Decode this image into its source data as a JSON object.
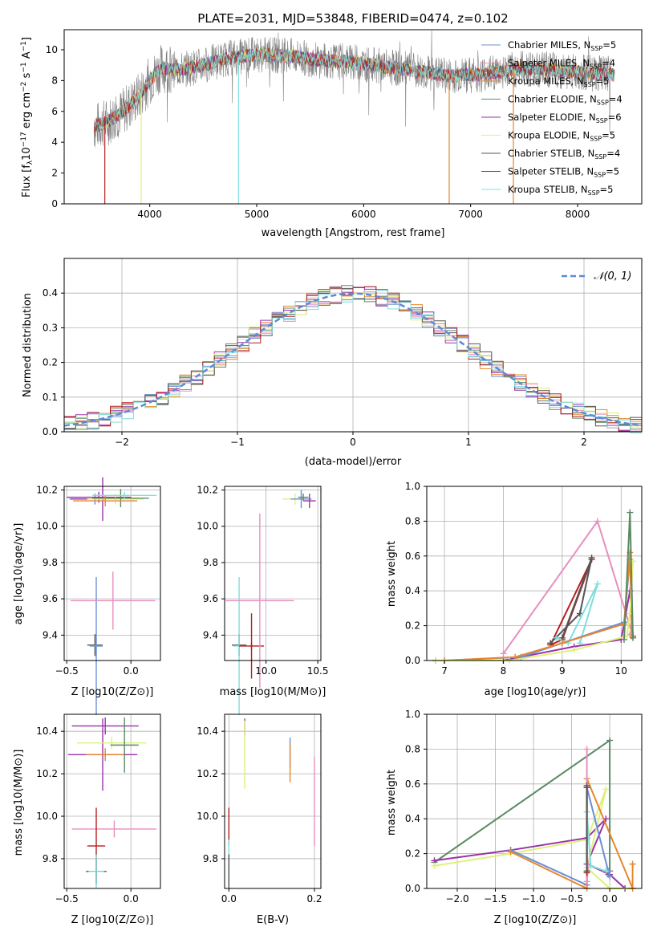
{
  "chart_data": [
    {
      "id": "spectrum",
      "type": "line",
      "title": "PLATE=2031, MJD=53848, FIBERID=0474, z=0.102",
      "xlabel": "wavelength [Angstrom, rest frame]",
      "ylabel": "Flux [f_λ 10^-17 erg cm^-2 s^-1 A^-1]",
      "xlim": [
        3200,
        8600
      ],
      "ylim": [
        0,
        11.3
      ],
      "xticks": [
        "4000",
        "5000",
        "6000",
        "7000",
        "8000"
      ],
      "yticks": [
        "0",
        "2",
        "4",
        "6",
        "8",
        "10"
      ],
      "grid": false,
      "legend_position": "right",
      "series": [
        {
          "name": "Chabrier MILES, N_SSP=5",
          "color": "#6b8fd6"
        },
        {
          "name": "Salpeter MILES, N_SSP=4",
          "color": "#e88fbf"
        },
        {
          "name": "Kroupa MILES, N_SSP=5",
          "color": "#e6862f"
        },
        {
          "name": "Chabrier ELODIE, N_SSP=4",
          "color": "#5b8a64"
        },
        {
          "name": "Salpeter ELODIE, N_SSP=6",
          "color": "#9933aa"
        },
        {
          "name": "Kroupa ELODIE, N_SSP=5",
          "color": "#dff07a"
        },
        {
          "name": "Chabrier STELIB, N_SSP=4",
          "color": "#555555"
        },
        {
          "name": "Salpeter STELIB, N_SSP=5",
          "color": "#b51f1f"
        },
        {
          "name": "Kroupa STELIB, N_SSP=5",
          "color": "#7fdede"
        }
      ],
      "observed_color": "#808080",
      "continuum": {
        "x": [
          3480,
          3600,
          3750,
          3900,
          4000,
          4100,
          4300,
          4500,
          4700,
          5000,
          5300,
          5600,
          5900,
          6200,
          6500,
          6800,
          7100,
          7300,
          7500
        ],
        "y": [
          5.0,
          5.3,
          6.0,
          7.0,
          8.0,
          8.8,
          8.7,
          9.0,
          9.4,
          9.7,
          9.6,
          9.3,
          9.2,
          8.9,
          8.6,
          8.3,
          8.4,
          8.6,
          8.8
        ]
      },
      "model_end_x": 8350
    },
    {
      "id": "residuals",
      "type": "bar",
      "xlabel": "(data-model)/error",
      "ylabel": "Normed distribution",
      "xlim": [
        -2.5,
        2.5
      ],
      "ylim": [
        0,
        0.5
      ],
      "xticks": [
        "−2",
        "−1",
        "0",
        "1",
        "2"
      ],
      "yticks": [
        "0.0",
        "0.1",
        "0.2",
        "0.3",
        "0.4"
      ],
      "grid": true,
      "legend": "𝒩(0, 1)",
      "legend_position": "top-right",
      "gauss_color": "#5b8bd9",
      "bin_width": 0.1
    },
    {
      "id": "age-vs-Z",
      "type": "scatter",
      "xlabel": "Z [log10(Z/Z⊙)]",
      "ylabel": "age [log10(age/yr)]",
      "xlim": [
        -0.52,
        0.23
      ],
      "ylim": [
        9.26,
        10.22
      ],
      "xticks": [
        "−0.5",
        "0.0"
      ],
      "yticks": [
        "9.4",
        "9.6",
        "9.8",
        "10.0",
        "10.2"
      ],
      "grid": true
    },
    {
      "id": "age-vs-mass",
      "type": "scatter",
      "xlabel": "mass [log10(M/M⊙)]",
      "xlim": [
        9.6,
        10.53
      ],
      "ylim": [
        9.26,
        10.22
      ],
      "xticks": [
        "10.0",
        "10.5"
      ],
      "yticks": [
        "9.4",
        "9.6",
        "9.8",
        "10.0",
        "10.2"
      ],
      "grid": true
    },
    {
      "id": "massweight-vs-age",
      "type": "line",
      "xlabel": "age [log10(age/yr)]",
      "ylabel": "mass weight",
      "xlim": [
        6.7,
        10.35
      ],
      "ylim": [
        0,
        1.0
      ],
      "xticks": [
        "7",
        "8",
        "9",
        "10"
      ],
      "yticks": [
        "0.0",
        "0.2",
        "0.4",
        "0.6",
        "0.8",
        "1.0"
      ],
      "grid": true
    },
    {
      "id": "mass-vs-Z",
      "type": "scatter",
      "xlabel": "Z [log10(Z/Z⊙)]",
      "ylabel": "mass [log10(M/M⊙)]",
      "xlim": [
        -0.52,
        0.23
      ],
      "ylim": [
        9.66,
        10.48
      ],
      "xticks": [
        "−0.5",
        "0.0"
      ],
      "yticks": [
        "9.8",
        "10.0",
        "10.2",
        "10.4"
      ],
      "grid": true
    },
    {
      "id": "mass-vs-ebv",
      "type": "scatter",
      "xlabel": "E(B-V)",
      "xlim": [
        -0.01,
        0.215
      ],
      "ylim": [
        9.66,
        10.48
      ],
      "xticks": [
        "0.0",
        "0.2"
      ],
      "yticks": [
        "9.8",
        "10.0",
        "10.2",
        "10.4"
      ],
      "grid": true
    },
    {
      "id": "massweight-vs-Z",
      "type": "line",
      "xlabel": "Z [log10(Z/Z⊙)]",
      "ylabel": "mass weight",
      "xlim": [
        -2.4,
        0.42
      ],
      "ylim": [
        0,
        1.0
      ],
      "xticks": [
        "−2.0",
        "−1.5",
        "−1.0",
        "−0.5",
        "0.0"
      ],
      "yticks": [
        "0.0",
        "0.2",
        "0.4",
        "0.6",
        "0.8",
        "1.0"
      ],
      "grid": true
    }
  ],
  "points": {
    "ageZ": [
      {
        "x": -0.28,
        "y": 9.345,
        "xe": 0.06,
        "ye": 0.06,
        "c": "#555555"
      },
      {
        "x": -0.27,
        "y": 9.34,
        "xe": 0.05,
        "ye": 0.05,
        "c": "#7fdede"
      },
      {
        "x": -0.27,
        "y": 9.34,
        "xe": 0.05,
        "ye": 0.38,
        "c": "#6b8fd6"
      },
      {
        "x": -0.14,
        "y": 9.59,
        "xe": 0.33,
        "ye": 0.16,
        "c": "#e88fbf"
      },
      {
        "x": -0.28,
        "y": 10.15,
        "xe": 0.2,
        "ye": 0.03,
        "c": "#6b8fd6"
      },
      {
        "x": -0.25,
        "y": 10.16,
        "xe": 0.25,
        "ye": 0.03,
        "c": "#9933aa"
      },
      {
        "x": -0.22,
        "y": 10.15,
        "xe": 0.25,
        "ye": 0.12,
        "c": "#9933aa"
      },
      {
        "x": -0.12,
        "y": 10.15,
        "xe": 0.22,
        "ye": 0.03,
        "c": "#dff07a"
      },
      {
        "x": -0.08,
        "y": 10.155,
        "xe": 0.22,
        "ye": 0.05,
        "c": "#5b8a64"
      },
      {
        "x": -0.2,
        "y": 10.14,
        "xe": 0.25,
        "ye": 0.03,
        "c": "#e6862f"
      },
      {
        "x": -0.05,
        "y": 10.17,
        "xe": 0.25,
        "ye": 0.02,
        "c": "#7fdede"
      }
    ],
    "ageM": [
      {
        "x": 9.74,
        "y": 9.345,
        "xe": 0.07,
        "ye": 0.06,
        "c": "#555555"
      },
      {
        "x": 9.74,
        "y": 9.34,
        "xe": 0.06,
        "ye": 0.38,
        "c": "#7fdede"
      },
      {
        "x": 9.86,
        "y": 9.34,
        "xe": 0.12,
        "ye": 0.02,
        "c": "#b51f1f"
      },
      {
        "x": 9.86,
        "y": 9.34,
        "xe": 0.01,
        "ye": 0.18,
        "c": "#b51f1f"
      },
      {
        "x": 9.94,
        "y": 9.59,
        "xe": 0.33,
        "ye": 0.48,
        "c": "#e88fbf"
      },
      {
        "x": 10.28,
        "y": 10.15,
        "xe": 0.12,
        "ye": 0.03,
        "c": "#dff07a"
      },
      {
        "x": 10.34,
        "y": 10.15,
        "xe": 0.1,
        "ye": 0.05,
        "c": "#6b8fd6"
      },
      {
        "x": 10.42,
        "y": 10.14,
        "xe": 0.06,
        "ye": 0.04,
        "c": "#9933aa"
      },
      {
        "x": 10.36,
        "y": 10.16,
        "xe": 0.05,
        "ye": 0.02,
        "c": "#5b8a64"
      }
    ],
    "massZ": [
      {
        "x": -0.2,
        "y": 10.425,
        "xe": 0.26,
        "ye": 0.04,
        "c": "#9933aa"
      },
      {
        "x": -0.22,
        "y": 10.29,
        "xe": 0.27,
        "ye": 0.17,
        "c": "#9933aa"
      },
      {
        "x": -0.15,
        "y": 10.345,
        "xe": 0.27,
        "ye": 0.03,
        "c": "#dff07a"
      },
      {
        "x": -0.2,
        "y": 10.29,
        "xe": 0.15,
        "ye": 0.03,
        "c": "#e6862f"
      },
      {
        "x": -0.05,
        "y": 10.335,
        "xe": 0.11,
        "ye": 0.13,
        "c": "#5b8a64"
      },
      {
        "x": -0.13,
        "y": 9.94,
        "xe": 0.33,
        "ye": 0.04,
        "c": "#e88fbf"
      },
      {
        "x": -0.27,
        "y": 9.86,
        "xe": 0.07,
        "ye": 0.18,
        "c": "#b51f1f"
      },
      {
        "x": -0.27,
        "y": 9.74,
        "xe": 0.08,
        "ye": 0.06,
        "c": "#555555"
      },
      {
        "x": -0.27,
        "y": 9.74,
        "xe": 0.06,
        "ye": 0.08,
        "c": "#7fdede"
      }
    ],
    "massE": [
      {
        "x": 0.037,
        "y": 10.42,
        "ye": 0.04,
        "c": "#9933aa"
      },
      {
        "x": 0.037,
        "y": 10.29,
        "ye": 0.16,
        "c": "#dff07a"
      },
      {
        "x": 0.143,
        "y": 10.3,
        "ye": 0.07,
        "c": "#6b8fd6"
      },
      {
        "x": 0.143,
        "y": 10.25,
        "ye": 0.09,
        "c": "#e6862f"
      },
      {
        "x": 0.2,
        "y": 10.07,
        "ye": 0.21,
        "c": "#e88fbf"
      },
      {
        "x": 0.0,
        "y": 9.95,
        "ye": 0.09,
        "c": "#b51f1f"
      },
      {
        "x": 0.0,
        "y": 9.78,
        "ye": 0.11,
        "c": "#7fdede"
      },
      {
        "x": 0.0,
        "y": 9.74,
        "ye": 0.08,
        "c": "#555555"
      }
    ],
    "mwAge": [
      {
        "c": "#e88fbf",
        "x": [
          8.0,
          9.6,
          10.2,
          10.15
        ],
        "y": [
          0.04,
          0.8,
          0.14,
          0.15
        ]
      },
      {
        "c": "#b51f1f",
        "x": [
          8.8,
          9.0,
          9.5,
          8.8
        ],
        "y": [
          0.09,
          0.12,
          0.58,
          0.09
        ]
      },
      {
        "c": "#555555",
        "x": [
          8.8,
          9.3,
          9.5,
          9.0
        ],
        "y": [
          0.1,
          0.27,
          0.59,
          0.13
        ]
      },
      {
        "c": "#7fdede",
        "x": [
          8.9,
          9.1,
          9.6,
          9.3
        ],
        "y": [
          0.13,
          0.1,
          0.44,
          0.1
        ]
      },
      {
        "c": "#9933aa",
        "x": [
          6.85,
          8.0,
          9.2,
          10.0,
          10.15,
          10.2
        ],
        "y": [
          0.0,
          0.0,
          0.08,
          0.12,
          0.4,
          0.14
        ]
      },
      {
        "c": "#6b8fd6",
        "x": [
          7.0,
          8.3,
          9.0,
          10.05,
          10.15
        ],
        "y": [
          0.0,
          0.02,
          0.1,
          0.22,
          0.58
        ]
      },
      {
        "c": "#e6862f",
        "x": [
          7.0,
          8.2,
          9.0,
          10.05,
          10.15,
          10.18
        ],
        "y": [
          0.0,
          0.02,
          0.1,
          0.21,
          0.62,
          0.14
        ]
      },
      {
        "c": "#dff07a",
        "x": [
          6.85,
          8.1,
          9.2,
          10.1,
          10.15,
          10.2
        ],
        "y": [
          0.0,
          0.0,
          0.06,
          0.14,
          0.27,
          0.57
        ]
      },
      {
        "c": "#5b8a64",
        "x": [
          10.05,
          10.15,
          10.2
        ],
        "y": [
          0.12,
          0.85,
          0.13
        ]
      }
    ],
    "mwZ": [
      {
        "c": "#5b8a64",
        "x": [
          -2.3,
          0.0,
          0.0,
          -0.02
        ],
        "y": [
          0.15,
          0.85,
          0.1,
          0.08
        ]
      },
      {
        "c": "#9933aa",
        "x": [
          -2.3,
          -1.3,
          -0.3,
          -0.05,
          -0.3,
          0.0,
          0.2
        ],
        "y": [
          0.16,
          0.22,
          0.29,
          0.4,
          0.14,
          0.08,
          0.0
        ]
      },
      {
        "c": "#dff07a",
        "x": [
          -2.3,
          -1.3,
          -0.3,
          -0.05,
          -0.3,
          0.0,
          0.3
        ],
        "y": [
          0.13,
          0.2,
          0.28,
          0.57,
          0.12,
          0.0,
          0.0
        ]
      },
      {
        "c": "#6b8fd6",
        "x": [
          -1.3,
          -0.3,
          -0.3,
          -0.02,
          0.0
        ],
        "y": [
          0.22,
          0.02,
          0.58,
          0.1,
          0.07
        ]
      },
      {
        "c": "#e6862f",
        "x": [
          -1.3,
          -0.3,
          -0.3,
          0.3,
          0.3
        ],
        "y": [
          0.21,
          0.0,
          0.63,
          0.0,
          0.14
        ]
      },
      {
        "c": "#e88fbf",
        "x": [
          -0.3,
          -0.3,
          -0.28
        ],
        "y": [
          0.8,
          0.04,
          0.14
        ]
      },
      {
        "c": "#b51f1f",
        "x": [
          -0.3,
          -0.3
        ],
        "y": [
          0.58,
          0.09
        ]
      },
      {
        "c": "#7fdede",
        "x": [
          -0.3,
          -0.25,
          -0.05
        ],
        "y": [
          0.44,
          0.13,
          0.1
        ]
      },
      {
        "c": "#555555",
        "x": [
          -0.3,
          -0.3
        ],
        "y": [
          0.59,
          0.1
        ]
      }
    ]
  }
}
